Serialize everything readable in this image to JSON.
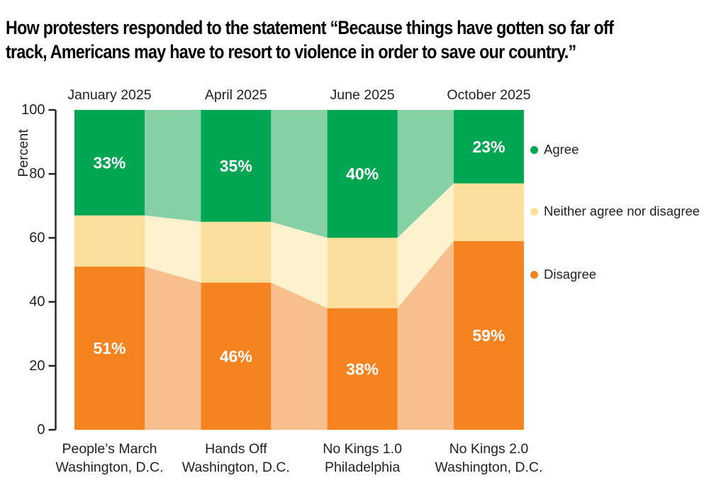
{
  "header": {
    "title_lines": [
      "How protesters responded to the statement “Because things have gotten so far off",
      "track, Americans may have to resort to violence in order to save our country.”"
    ]
  },
  "chart_data": {
    "type": "area",
    "title": "How protesters responded to the statement “Because things have gotten so far off track, Americans may have to resort to violence in order to save our country.”",
    "categories": [
      {
        "period": "January 2025",
        "event_lines": [
          "People’s March",
          "Washington, D.C."
        ]
      },
      {
        "period": "April 2025",
        "event_lines": [
          "Hands Off",
          "Washington, D.C."
        ]
      },
      {
        "period": "June 2025",
        "event_lines": [
          "No Kings 1.0",
          "Philadelphia"
        ]
      },
      {
        "period": "October 2025",
        "event_lines": [
          "No Kings 2.0",
          "Washington, D.C."
        ]
      }
    ],
    "series": [
      {
        "name": "Agree",
        "values": [
          33,
          35,
          40,
          23
        ],
        "labeled": true,
        "color": "#00a651",
        "transition_color": "#85d0a5"
      },
      {
        "name": "Neither agree nor disagree",
        "values": [
          16,
          19,
          22,
          18
        ],
        "labeled": false,
        "color": "#fcdf9d",
        "transition_color": "#fcf1cd"
      },
      {
        "name": "Disagree",
        "values": [
          51,
          46,
          38,
          59
        ],
        "labeled": true,
        "color": "#f5831f",
        "transition_color": "#f8bf8e"
      }
    ],
    "stack_order_top_to_bottom": [
      "Agree",
      "Neither agree nor disagree",
      "Disagree"
    ],
    "ylabel": "Percent",
    "ylim": [
      0,
      100
    ],
    "yticks": [
      0,
      20,
      40,
      60,
      80,
      100
    ],
    "value_label_format": "{v}%",
    "legend_position": "right",
    "grid": false,
    "ink_color": "#231f20",
    "value_label_color": "#ffffff"
  }
}
